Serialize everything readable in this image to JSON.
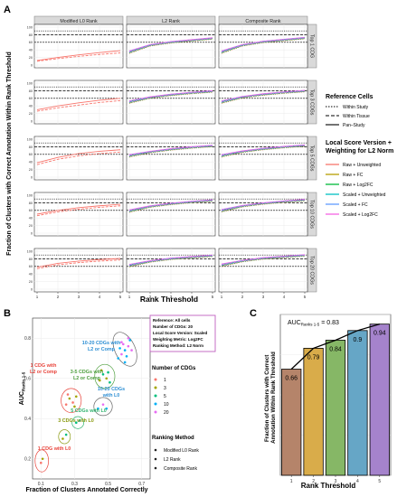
{
  "panel_labels": {
    "a": "A",
    "b": "B",
    "c": "C"
  },
  "chart_data": [
    {
      "id": "A",
      "type": "line",
      "xlabel": "Rank Threshold",
      "ylabel": "Fraction of Clusters with Correct Annotation Within Rank Threshold",
      "xlim": [
        1,
        5
      ],
      "ylim": [
        0,
        100
      ],
      "x": [
        1,
        2,
        3,
        4,
        5
      ],
      "x_ticks": [
        "1",
        "2",
        "3",
        "4",
        "5"
      ],
      "y_ticks": [
        "0",
        "20",
        "40",
        "60",
        "80",
        "100"
      ],
      "columns": [
        "Modified L0 Rank",
        "L2 Rank",
        "Composite Rank"
      ],
      "rows": [
        "Top 1 CDG",
        "Top 3 CDGs",
        "Top 5 CDGs",
        "Top 10 CDGs",
        "Top 20 CDGs"
      ],
      "reference_lines": {
        "within_study": 90,
        "within_tissue": 80,
        "pan_study": 60
      },
      "grid": true,
      "legend_placement": "right",
      "legend": {
        "ref_title": "Reference Cells",
        "ref_items": [
          "Within Study",
          "Within Tissue",
          "Pan–Study"
        ],
        "score_title_1": "Local Score Version +",
        "score_title_2": "Weighting for L2 Norm",
        "score_items": [
          "Raw + Unweighted",
          "Raw + FC",
          "Raw + Log2FC",
          "Scaled + Unweighted",
          "Scaled + FC",
          "Scaled + Log2FC"
        ]
      },
      "colors": [
        "#f8766d",
        "#b79f00",
        "#00ba38",
        "#00bfc4",
        "#619cff",
        "#f564e3"
      ],
      "l0_series": [
        {
          "solid": [
            12,
            20,
            27,
            33,
            38
          ],
          "dashed": [
            10,
            17,
            23,
            28,
            32
          ]
        },
        {
          "solid": [
            30,
            40,
            48,
            55,
            60
          ],
          "dashed": [
            26,
            35,
            42,
            49,
            54
          ]
        },
        {
          "solid": [
            38,
            52,
            62,
            68,
            72
          ],
          "dashed": [
            33,
            47,
            56,
            62,
            66
          ]
        },
        {
          "solid": [
            50,
            60,
            67,
            72,
            76
          ],
          "dashed": [
            46,
            56,
            63,
            68,
            72
          ]
        },
        {
          "solid": [
            58,
            68,
            74,
            78,
            81
          ],
          "dashed": [
            54,
            64,
            70,
            74,
            77
          ]
        }
      ],
      "l2_series": [
        {
          "base": [
            34,
            52,
            60,
            65,
            70
          ],
          "spread": [
            4,
            3,
            3,
            3,
            3
          ]
        },
        {
          "base": [
            50,
            62,
            69,
            74,
            78
          ],
          "spread": [
            4,
            3,
            3,
            3,
            3
          ]
        },
        {
          "base": [
            56,
            66,
            73,
            78,
            82
          ],
          "spread": [
            4,
            3,
            3,
            3,
            3
          ]
        },
        {
          "base": [
            58,
            70,
            77,
            82,
            86
          ],
          "spread": [
            4,
            3,
            3,
            3,
            3
          ]
        },
        {
          "base": [
            62,
            73,
            80,
            84,
            88
          ],
          "spread": [
            4,
            3,
            3,
            3,
            3
          ]
        }
      ],
      "composite_series": [
        {
          "base": [
            34,
            52,
            61,
            66,
            71
          ],
          "spread": [
            4,
            3,
            3,
            3,
            3
          ]
        },
        {
          "base": [
            50,
            63,
            70,
            75,
            79
          ],
          "spread": [
            4,
            3,
            3,
            3,
            3
          ]
        },
        {
          "base": [
            56,
            67,
            74,
            79,
            83
          ],
          "spread": [
            4,
            3,
            3,
            3,
            3
          ]
        },
        {
          "base": [
            59,
            71,
            78,
            83,
            87
          ],
          "spread": [
            4,
            3,
            3,
            3,
            3
          ]
        },
        {
          "base": [
            63,
            74,
            81,
            85,
            89
          ],
          "spread": [
            4,
            3,
            3,
            3,
            3
          ]
        }
      ]
    },
    {
      "id": "B",
      "type": "scatter",
      "xlabel": "Fraction of Clusters Annotated Correctly",
      "ylabel_main": "AUC",
      "ylabel_sub": "Ranks 1-5",
      "xlim": [
        0.05,
        0.75
      ],
      "ylim": [
        0.1,
        0.9
      ],
      "x_ticks": [
        0.1,
        0.3,
        0.5,
        0.7
      ],
      "y_ticks": [
        0.2,
        0.4,
        0.6,
        0.8
      ],
      "grid": true,
      "info_box": [
        "Reference: All cells",
        "Number of CDGs: 20",
        "Local Score Version: Scaled",
        "Weighting Metric: Log2FC",
        "Ranking Method: L2 Norm"
      ],
      "cdg_legend_title": "Number of CDGs",
      "cdg_levels": [
        "1",
        "3",
        "5",
        "10",
        "20"
      ],
      "cdg_colors": [
        "#f8766d",
        "#a3a500",
        "#00bf7d",
        "#00b0f6",
        "#e76bf3"
      ],
      "method_legend_title": "Ranking Method",
      "methods": [
        "Modified L0 Rank",
        "L2 Rank",
        "Composite Rank"
      ],
      "annotations": [
        {
          "text": "10-20 CDGs with",
          "text2": "L2 or Comp",
          "color": "#2d8fd4"
        },
        {
          "text": "3-5 CDGs with",
          "text2": "L2 or Comp",
          "color": "#50a040"
        },
        {
          "text": "10-20 CDGs",
          "text2": "with L0",
          "color": "#2d8fd4"
        },
        {
          "text": "1 CDG with",
          "text2": "L2 or Comp",
          "color": "#e8453c"
        },
        {
          "text": "5 CDGs with L0",
          "text2": "",
          "color": "#2fb36e"
        },
        {
          "text": "3 CDGs with L0",
          "text2": "",
          "color": "#8a9a10"
        },
        {
          "text": "1 CDG with L0",
          "text2": "",
          "color": "#e8453c"
        }
      ],
      "clusters": [
        {
          "cx": 0.6,
          "cy": 0.745,
          "rx": 0.06,
          "ry": 0.09,
          "level": 3,
          "points": [
            [
              0.56,
              0.7
            ],
            [
              0.58,
              0.72
            ],
            [
              0.6,
              0.74
            ],
            [
              0.62,
              0.76
            ],
            [
              0.63,
              0.79
            ],
            [
              0.59,
              0.77
            ],
            [
              0.61,
              0.71
            ],
            [
              0.64,
              0.74
            ],
            [
              0.57,
              0.75
            ],
            [
              0.62,
              0.8
            ],
            [
              0.6,
              0.68
            ],
            [
              0.58,
              0.78
            ]
          ]
        },
        {
          "cx": 0.48,
          "cy": 0.61,
          "rx": 0.06,
          "ry": 0.06,
          "level": 1,
          "points": [
            [
              0.45,
              0.59
            ],
            [
              0.47,
              0.62
            ],
            [
              0.49,
              0.6
            ],
            [
              0.5,
              0.63
            ],
            [
              0.46,
              0.64
            ],
            [
              0.51,
              0.58
            ]
          ]
        },
        {
          "cx": 0.47,
          "cy": 0.46,
          "rx": 0.055,
          "ry": 0.045,
          "level": 3,
          "points": [
            [
              0.44,
              0.45
            ],
            [
              0.47,
              0.47
            ],
            [
              0.49,
              0.45
            ]
          ]
        },
        {
          "cx": 0.28,
          "cy": 0.49,
          "rx": 0.06,
          "ry": 0.06,
          "level": 0,
          "points": [
            [
              0.25,
              0.47
            ],
            [
              0.27,
              0.5
            ],
            [
              0.29,
              0.48
            ],
            [
              0.31,
              0.51
            ],
            [
              0.26,
              0.52
            ],
            [
              0.3,
              0.46
            ]
          ]
        },
        {
          "cx": 0.32,
          "cy": 0.38,
          "rx": 0.035,
          "ry": 0.03,
          "level": 2,
          "points": [
            [
              0.31,
              0.38
            ],
            [
              0.33,
              0.39
            ]
          ]
        },
        {
          "cx": 0.24,
          "cy": 0.31,
          "rx": 0.035,
          "ry": 0.035,
          "level": 1,
          "points": [
            [
              0.23,
              0.3
            ],
            [
              0.25,
              0.32
            ]
          ]
        },
        {
          "cx": 0.105,
          "cy": 0.19,
          "rx": 0.04,
          "ry": 0.055,
          "level": 0,
          "points": [
            [
              0.1,
              0.18
            ],
            [
              0.11,
              0.2
            ]
          ]
        }
      ]
    },
    {
      "id": "C",
      "type": "bar",
      "xlabel": "Rank Threshold",
      "ylabel": "Fraction of Clusters with Correct Annotation Within Rank Threshold",
      "categories": [
        "1",
        "2",
        "3",
        "4",
        "5"
      ],
      "values": [
        0.66,
        0.79,
        0.84,
        0.9,
        0.94
      ],
      "value_labels": [
        "0.66",
        "0.79",
        "0.84",
        "0.9",
        "0.94"
      ],
      "ylim": [
        0,
        1
      ],
      "colors": [
        "#b5846a",
        "#d9ac4a",
        "#86b766",
        "#66a6c6",
        "#a583cc"
      ],
      "auc_label": "AUC",
      "auc_sub": "Ranks 1-5",
      "auc_value": " = 0.83",
      "grid": true
    }
  ]
}
